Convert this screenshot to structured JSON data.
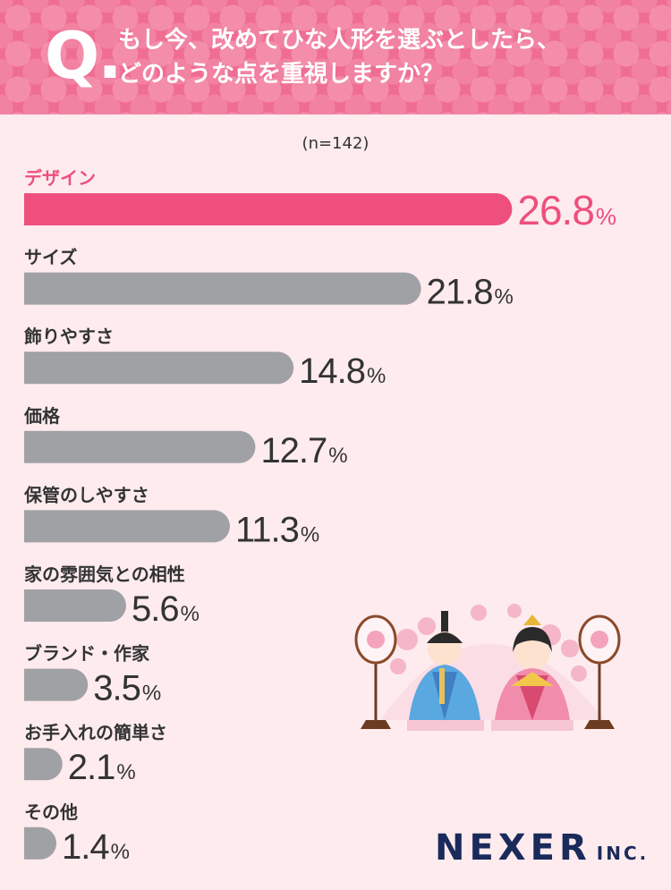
{
  "question": {
    "mark": "Q.",
    "lines": [
      "もし今、改めてひな人形を選ぶとしたら、",
      "どのような点を重視しますか？"
    ]
  },
  "sample_size": "(n=142)",
  "brand": {
    "name": "NEXER",
    "suffix": "INC."
  },
  "colors": {
    "highlight": "#ee4f7d",
    "bar": "#a0a1a5",
    "header": "#f06d92",
    "text": "#333333"
  },
  "chart_data": {
    "type": "bar",
    "orientation": "horizontal",
    "unit": "%",
    "categories": [
      "デザイン",
      "サイズ",
      "飾りやすさ",
      "価格",
      "保管のしやすさ",
      "家の雰囲気との相性",
      "ブランド・作家",
      "お手入れの簡単さ",
      "その他"
    ],
    "values": [
      26.8,
      21.8,
      14.8,
      12.7,
      11.3,
      5.6,
      3.5,
      2.1,
      1.4
    ],
    "highlight_index": 0
  }
}
